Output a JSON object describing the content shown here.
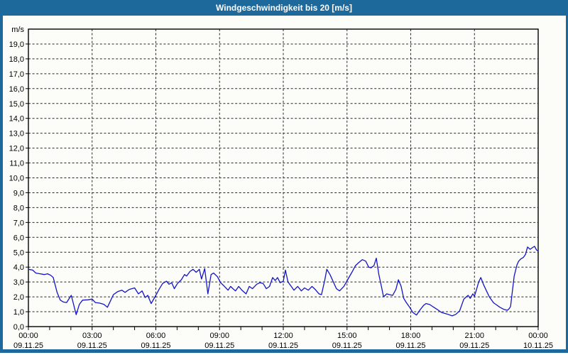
{
  "window": {
    "title": "Windgeschwindigkeit bis 20 [m/s]"
  },
  "colors": {
    "titlebar": "#1e699b",
    "window_border": "#1e699b",
    "plot_background": "#fcfdf8",
    "grid": "#2a2a2a",
    "axis_frame": "#000000",
    "label_text": "#000000",
    "line": "#1414c8"
  },
  "chart_data": {
    "type": "line",
    "title": "Windgeschwindigkeit bis 20 [m/s]",
    "y_unit": "m/s",
    "ylim": [
      0,
      20
    ],
    "xlim_hours": [
      0,
      24
    ],
    "grid": {
      "style": "dashed",
      "horizontal_step": 1,
      "vertical_step_hours": 3,
      "minor_x_tick_hours": 1,
      "legend": "none"
    },
    "y_tick_labels": [
      "0,0",
      "1,0",
      "2,0",
      "3,0",
      "4,0",
      "5,0",
      "6,0",
      "7,0",
      "8,0",
      "9,0",
      "10,0",
      "11,0",
      "12,0",
      "13,0",
      "14,0",
      "15,0",
      "16,0",
      "17,0",
      "18,0",
      "19,0"
    ],
    "x_ticks": [
      {
        "hour": 0,
        "time": "00:00",
        "date": "09.11.25"
      },
      {
        "hour": 3,
        "time": "03:00",
        "date": "09.11.25"
      },
      {
        "hour": 6,
        "time": "06:00",
        "date": "09.11.25"
      },
      {
        "hour": 9,
        "time": "09:00",
        "date": "09.11.25"
      },
      {
        "hour": 12,
        "time": "12:00",
        "date": "09.11.25"
      },
      {
        "hour": 15,
        "time": "15:00",
        "date": "09.11.25"
      },
      {
        "hour": 18,
        "time": "18:00",
        "date": "09.11.25"
      },
      {
        "hour": 21,
        "time": "21:00",
        "date": "09.11.25"
      },
      {
        "hour": 24,
        "time": "00:00",
        "date": "10.11.25"
      }
    ],
    "series": [
      {
        "name": "Windgeschwindigkeit",
        "unit": "m/s",
        "points_hour_value": [
          [
            0,
            3.85
          ],
          [
            0.2,
            3.8
          ],
          [
            0.35,
            3.6
          ],
          [
            0.55,
            3.55
          ],
          [
            0.75,
            3.5
          ],
          [
            0.9,
            3.55
          ],
          [
            1.05,
            3.45
          ],
          [
            1.17,
            3.3
          ],
          [
            1.35,
            2.3
          ],
          [
            1.5,
            1.78
          ],
          [
            1.65,
            1.65
          ],
          [
            1.8,
            1.62
          ],
          [
            1.95,
            1.95
          ],
          [
            2.02,
            2.1
          ],
          [
            2.25,
            0.8
          ],
          [
            2.4,
            1.5
          ],
          [
            2.55,
            1.78
          ],
          [
            2.8,
            1.8
          ],
          [
            3.0,
            1.85
          ],
          [
            3.15,
            1.62
          ],
          [
            3.35,
            1.58
          ],
          [
            3.55,
            1.5
          ],
          [
            3.72,
            1.3
          ],
          [
            3.87,
            1.75
          ],
          [
            4.0,
            2.15
          ],
          [
            4.2,
            2.35
          ],
          [
            4.4,
            2.45
          ],
          [
            4.55,
            2.3
          ],
          [
            4.75,
            2.5
          ],
          [
            5.0,
            2.6
          ],
          [
            5.18,
            2.2
          ],
          [
            5.35,
            2.4
          ],
          [
            5.5,
            1.95
          ],
          [
            5.62,
            2.1
          ],
          [
            5.78,
            1.55
          ],
          [
            6.0,
            2.1
          ],
          [
            6.15,
            2.5
          ],
          [
            6.32,
            2.9
          ],
          [
            6.5,
            3.05
          ],
          [
            6.62,
            2.85
          ],
          [
            6.75,
            2.95
          ],
          [
            6.87,
            2.55
          ],
          [
            7.02,
            2.9
          ],
          [
            7.2,
            3.15
          ],
          [
            7.35,
            3.5
          ],
          [
            7.45,
            3.4
          ],
          [
            7.6,
            3.7
          ],
          [
            7.75,
            3.85
          ],
          [
            7.9,
            3.65
          ],
          [
            8.05,
            3.85
          ],
          [
            8.15,
            3.2
          ],
          [
            8.3,
            3.9
          ],
          [
            8.45,
            2.2
          ],
          [
            8.6,
            3.5
          ],
          [
            8.72,
            3.6
          ],
          [
            8.9,
            3.35
          ],
          [
            9.05,
            2.95
          ],
          [
            9.2,
            2.75
          ],
          [
            9.4,
            2.45
          ],
          [
            9.52,
            2.7
          ],
          [
            9.63,
            2.55
          ],
          [
            9.75,
            2.4
          ],
          [
            9.9,
            2.7
          ],
          [
            10.05,
            2.45
          ],
          [
            10.25,
            2.2
          ],
          [
            10.4,
            2.7
          ],
          [
            10.55,
            2.55
          ],
          [
            10.75,
            2.85
          ],
          [
            10.9,
            2.95
          ],
          [
            11.05,
            2.9
          ],
          [
            11.2,
            2.55
          ],
          [
            11.35,
            2.7
          ],
          [
            11.5,
            3.3
          ],
          [
            11.62,
            3.1
          ],
          [
            11.73,
            3.3
          ],
          [
            11.85,
            2.95
          ],
          [
            12.0,
            3.05
          ],
          [
            12.1,
            3.8
          ],
          [
            12.22,
            3.0
          ],
          [
            12.35,
            2.75
          ],
          [
            12.5,
            2.45
          ],
          [
            12.68,
            2.7
          ],
          [
            12.85,
            2.4
          ],
          [
            13.0,
            2.6
          ],
          [
            13.18,
            2.45
          ],
          [
            13.35,
            2.7
          ],
          [
            13.5,
            2.5
          ],
          [
            13.68,
            2.2
          ],
          [
            13.8,
            2.15
          ],
          [
            13.95,
            3.1
          ],
          [
            14.05,
            3.85
          ],
          [
            14.2,
            3.5
          ],
          [
            14.5,
            2.55
          ],
          [
            14.65,
            2.4
          ],
          [
            14.85,
            2.7
          ],
          [
            15.05,
            3.2
          ],
          [
            15.25,
            3.7
          ],
          [
            15.4,
            4.1
          ],
          [
            15.55,
            4.3
          ],
          [
            15.72,
            4.5
          ],
          [
            15.88,
            4.4
          ],
          [
            16.02,
            4.0
          ],
          [
            16.13,
            3.95
          ],
          [
            16.27,
            4.1
          ],
          [
            16.38,
            4.6
          ],
          [
            16.5,
            3.5
          ],
          [
            16.62,
            2.7
          ],
          [
            16.72,
            2.0
          ],
          [
            16.87,
            2.2
          ],
          [
            17.0,
            2.15
          ],
          [
            17.15,
            2.1
          ],
          [
            17.3,
            2.5
          ],
          [
            17.42,
            3.15
          ],
          [
            17.55,
            2.7
          ],
          [
            17.67,
            1.9
          ],
          [
            17.8,
            1.6
          ],
          [
            17.95,
            1.3
          ],
          [
            18.1,
            0.95
          ],
          [
            18.27,
            0.78
          ],
          [
            18.45,
            1.15
          ],
          [
            18.6,
            1.42
          ],
          [
            18.72,
            1.55
          ],
          [
            18.9,
            1.48
          ],
          [
            19.05,
            1.33
          ],
          [
            19.25,
            1.15
          ],
          [
            19.45,
            0.95
          ],
          [
            19.7,
            0.85
          ],
          [
            19.95,
            0.72
          ],
          [
            20.12,
            0.82
          ],
          [
            20.3,
            1.05
          ],
          [
            20.5,
            1.85
          ],
          [
            20.7,
            2.1
          ],
          [
            20.8,
            1.9
          ],
          [
            20.92,
            2.2
          ],
          [
            21.0,
            2.05
          ],
          [
            21.1,
            2.5
          ],
          [
            21.2,
            3.0
          ],
          [
            21.3,
            3.3
          ],
          [
            21.42,
            2.85
          ],
          [
            21.55,
            2.45
          ],
          [
            21.7,
            2.0
          ],
          [
            21.9,
            1.6
          ],
          [
            22.05,
            1.45
          ],
          [
            22.2,
            1.3
          ],
          [
            22.4,
            1.15
          ],
          [
            22.55,
            1.1
          ],
          [
            22.63,
            1.2
          ],
          [
            22.7,
            1.35
          ],
          [
            22.77,
            2.2
          ],
          [
            22.87,
            3.4
          ],
          [
            23.0,
            4.15
          ],
          [
            23.08,
            4.4
          ],
          [
            23.18,
            4.55
          ],
          [
            23.3,
            4.65
          ],
          [
            23.4,
            4.85
          ],
          [
            23.5,
            5.35
          ],
          [
            23.62,
            5.2
          ],
          [
            23.72,
            5.3
          ],
          [
            23.83,
            5.4
          ],
          [
            23.92,
            5.15
          ],
          [
            24,
            5.1
          ]
        ]
      }
    ]
  }
}
